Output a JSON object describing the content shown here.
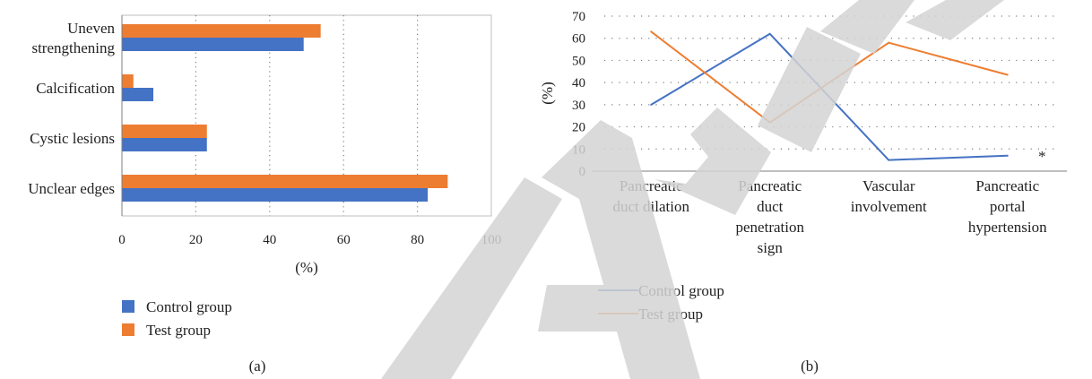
{
  "chart_data": [
    {
      "type": "bar",
      "orientation": "horizontal",
      "panel_label": "(a)",
      "xlabel": "(%)",
      "xlim": [
        0,
        100
      ],
      "xticks": [
        "0",
        "20",
        "40",
        "60",
        "80",
        "100"
      ],
      "grid": true,
      "legend_position": "bottom-left",
      "categories": [
        [
          "Uneven",
          "strengthening"
        ],
        [
          "Calcification"
        ],
        [
          "Cystic lesions"
        ],
        [
          "Unclear edges"
        ]
      ],
      "series": [
        {
          "name": "Control group",
          "color": "#4472c4",
          "values": [
            49.2,
            8.5,
            23,
            82.8
          ]
        },
        {
          "name": "Test group",
          "color": "#ed7d31",
          "values": [
            53.8,
            3.1,
            23,
            88.2
          ]
        }
      ]
    },
    {
      "type": "line",
      "panel_label": "(b)",
      "ylabel": "(%)",
      "ylim": [
        0,
        70
      ],
      "yticks": [
        "0",
        "10",
        "20",
        "30",
        "40",
        "50",
        "60",
        "70"
      ],
      "grid": true,
      "legend_position": "bottom-left",
      "categories": [
        [
          "Pancreatic",
          "duct dilation"
        ],
        [
          "Pancreatic",
          "duct",
          "penetration",
          "sign"
        ],
        [
          "Vascular",
          "involvement"
        ],
        [
          "Pancreatic",
          "portal",
          "hypertension"
        ]
      ],
      "series": [
        {
          "name": "Control group",
          "color": "#4472c4",
          "values": [
            30,
            62,
            5,
            7
          ]
        },
        {
          "name": "Test group",
          "color": "#ed7d31",
          "values": [
            63,
            22,
            58,
            43.5
          ]
        }
      ],
      "annotation": "*"
    }
  ]
}
